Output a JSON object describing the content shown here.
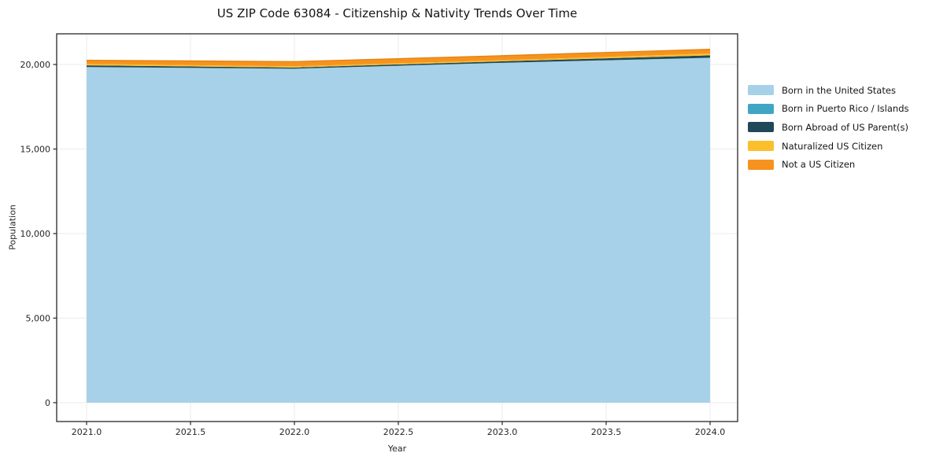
{
  "chart_data": {
    "type": "area",
    "stacked": true,
    "title": "US ZIP Code 63084 - Citizenship & Nativity Trends Over Time",
    "xlabel": "Year",
    "ylabel": "Population",
    "grid": true,
    "legend_position": "right-outside",
    "xlim": [
      2020.86,
      2024.13
    ],
    "ylim": [
      0,
      21800
    ],
    "x": [
      2021,
      2022,
      2023,
      2024
    ],
    "x_ticks": [
      2021.0,
      2021.5,
      2022.0,
      2022.5,
      2023.0,
      2023.5,
      2024.0
    ],
    "x_tick_labels": [
      "2021.0",
      "2021.5",
      "2022.0",
      "2022.5",
      "2023.0",
      "2023.5",
      "2024.0"
    ],
    "y_ticks": [
      0,
      5000,
      10000,
      15000,
      20000
    ],
    "y_tick_labels": [
      "0",
      "5,000",
      "10,000",
      "15,000",
      "20,000"
    ],
    "series": [
      {
        "name": "Born in the United States",
        "color": "#a6d1e8",
        "values": [
          19850,
          19750,
          20100,
          20400
        ]
      },
      {
        "name": "Born in Puerto Rico / Islands",
        "color": "#41a6c4",
        "values": [
          0,
          0,
          0,
          0
        ]
      },
      {
        "name": "Born Abroad of US Parent(s)",
        "color": "#1f4858",
        "values": [
          100,
          70,
          90,
          140
        ]
      },
      {
        "name": "Naturalized US Citizen",
        "color": "#fbbf2c",
        "values": [
          80,
          70,
          60,
          110
        ]
      },
      {
        "name": "Not a US Citizen",
        "color": "#f6931e",
        "edge": "#e2820e",
        "values": [
          220,
          280,
          270,
          250
        ]
      }
    ],
    "colors": {
      "background": "#ffffff",
      "gridline": "#ebebeb",
      "axis": "#262626",
      "text": "#141414"
    }
  }
}
